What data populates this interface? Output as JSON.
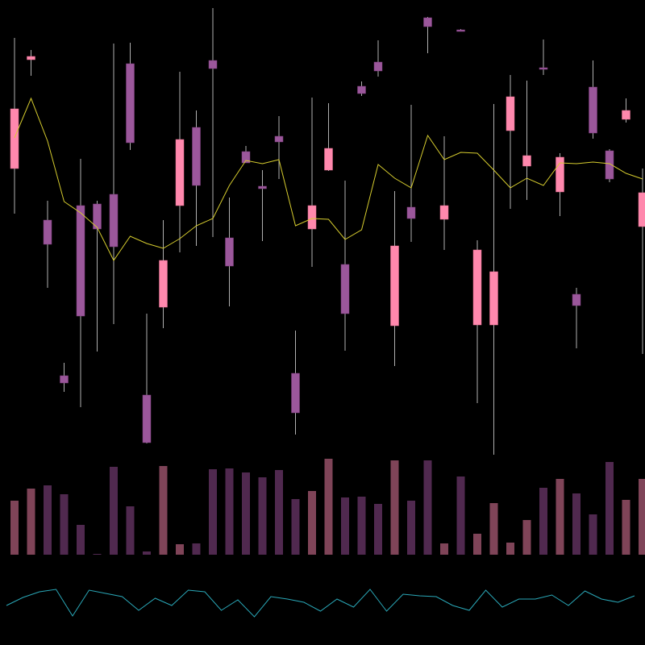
{
  "chart_data": {
    "type": "candlestick",
    "title": "",
    "xlabel": "",
    "ylabel": "",
    "grid": false,
    "legend": "none",
    "colors": {
      "background": "#000000",
      "up_candle": "#ff88ad",
      "down_candle": "#9b579b",
      "wick": "#b0b0b0",
      "moving_average": "#d6cc2e",
      "volume_up": "#7f4458",
      "volume_down": "#50294f",
      "indicator": "#2aa8b8"
    },
    "ohlc": [
      {
        "o": 591,
        "h": 753,
        "l": 535,
        "c": 665
      },
      {
        "o": 726,
        "h": 738,
        "l": 706,
        "c": 730
      },
      {
        "o": 527,
        "h": 551,
        "l": 443,
        "c": 497
      },
      {
        "o": 334,
        "h": 350,
        "l": 314,
        "c": 325
      },
      {
        "o": 545,
        "h": 603,
        "l": 295,
        "c": 408
      },
      {
        "o": 547,
        "h": 551,
        "l": 364,
        "c": 516
      },
      {
        "o": 559,
        "h": 746,
        "l": 398,
        "c": 494
      },
      {
        "o": 721,
        "h": 747,
        "l": 614,
        "c": 623
      },
      {
        "o": 310,
        "h": 411,
        "l": 250,
        "c": 251
      },
      {
        "o": 419,
        "h": 527,
        "l": 393,
        "c": 477
      },
      {
        "o": 545,
        "h": 711,
        "l": 487,
        "c": 627
      },
      {
        "o": 642,
        "h": 663,
        "l": 495,
        "c": 570
      },
      {
        "o": 725,
        "h": 790,
        "l": 506,
        "c": 715
      },
      {
        "o": 505,
        "h": 555,
        "l": 420,
        "c": 470
      },
      {
        "o": 612,
        "h": 619,
        "l": 598,
        "c": 598
      },
      {
        "o": 569,
        "h": 589,
        "l": 501,
        "c": 566
      },
      {
        "o": 631,
        "h": 656,
        "l": 578,
        "c": 624
      },
      {
        "o": 337,
        "h": 390,
        "l": 261,
        "c": 288
      },
      {
        "o": 516,
        "h": 679,
        "l": 469,
        "c": 545
      },
      {
        "o": 589,
        "h": 672,
        "l": 588,
        "c": 616
      },
      {
        "o": 472,
        "h": 576,
        "l": 365,
        "c": 411
      },
      {
        "o": 693,
        "h": 699,
        "l": 681,
        "c": 684
      },
      {
        "o": 723,
        "h": 750,
        "l": 705,
        "c": 712
      },
      {
        "o": 396,
        "h": 563,
        "l": 346,
        "c": 495
      },
      {
        "o": 543,
        "h": 670,
        "l": 500,
        "c": 529
      },
      {
        "o": 778,
        "h": 779,
        "l": 734,
        "c": 767
      },
      {
        "o": 528,
        "h": 631,
        "l": 490,
        "c": 545
      },
      {
        "o": 763,
        "h": 764,
        "l": 761,
        "c": 761
      },
      {
        "o": 397,
        "h": 502,
        "l": 300,
        "c": 490
      },
      {
        "o": 397,
        "h": 671,
        "l": 236,
        "c": 463
      },
      {
        "o": 638,
        "h": 707,
        "l": 541,
        "c": 680
      },
      {
        "o": 594,
        "h": 700,
        "l": 552,
        "c": 607
      },
      {
        "o": 716,
        "h": 751,
        "l": 707,
        "c": 714
      },
      {
        "o": 562,
        "h": 610,
        "l": 532,
        "c": 605
      },
      {
        "o": 435,
        "h": 443,
        "l": 368,
        "c": 421
      },
      {
        "o": 692,
        "h": 725,
        "l": 628,
        "c": 635
      },
      {
        "o": 613,
        "h": 615,
        "l": 574,
        "c": 578
      },
      {
        "o": 652,
        "h": 678,
        "l": 648,
        "c": 663
      },
      {
        "o": 519,
        "h": 591,
        "l": 361,
        "c": 561
      }
    ],
    "moving_average": [
      629,
      678,
      625,
      550,
      536,
      518,
      477,
      507,
      498,
      492,
      504,
      520,
      529,
      570,
      601,
      597,
      602,
      520,
      529,
      528,
      503,
      515,
      596,
      579,
      567,
      632,
      602,
      611,
      610,
      589,
      567,
      579,
      570,
      598,
      597,
      599,
      597,
      585,
      578
    ],
    "volume": [
      67,
      82,
      86,
      75,
      37,
      1,
      109,
      60,
      4,
      110,
      13,
      14,
      106,
      107,
      102,
      96,
      105,
      69,
      79,
      119,
      71,
      72,
      63,
      117,
      67,
      117,
      14,
      97,
      26,
      64,
      15,
      43,
      83,
      94,
      76,
      50,
      115,
      68,
      94
    ],
    "indicator": [
      49,
      59,
      66,
      69,
      36,
      68,
      64,
      60,
      43,
      58,
      49,
      68,
      66,
      43,
      56,
      35,
      60,
      57,
      53,
      42,
      57,
      47,
      69,
      42,
      63,
      61,
      60,
      49,
      43,
      68,
      47,
      57,
      57,
      62,
      49,
      67,
      57,
      53,
      61
    ]
  }
}
